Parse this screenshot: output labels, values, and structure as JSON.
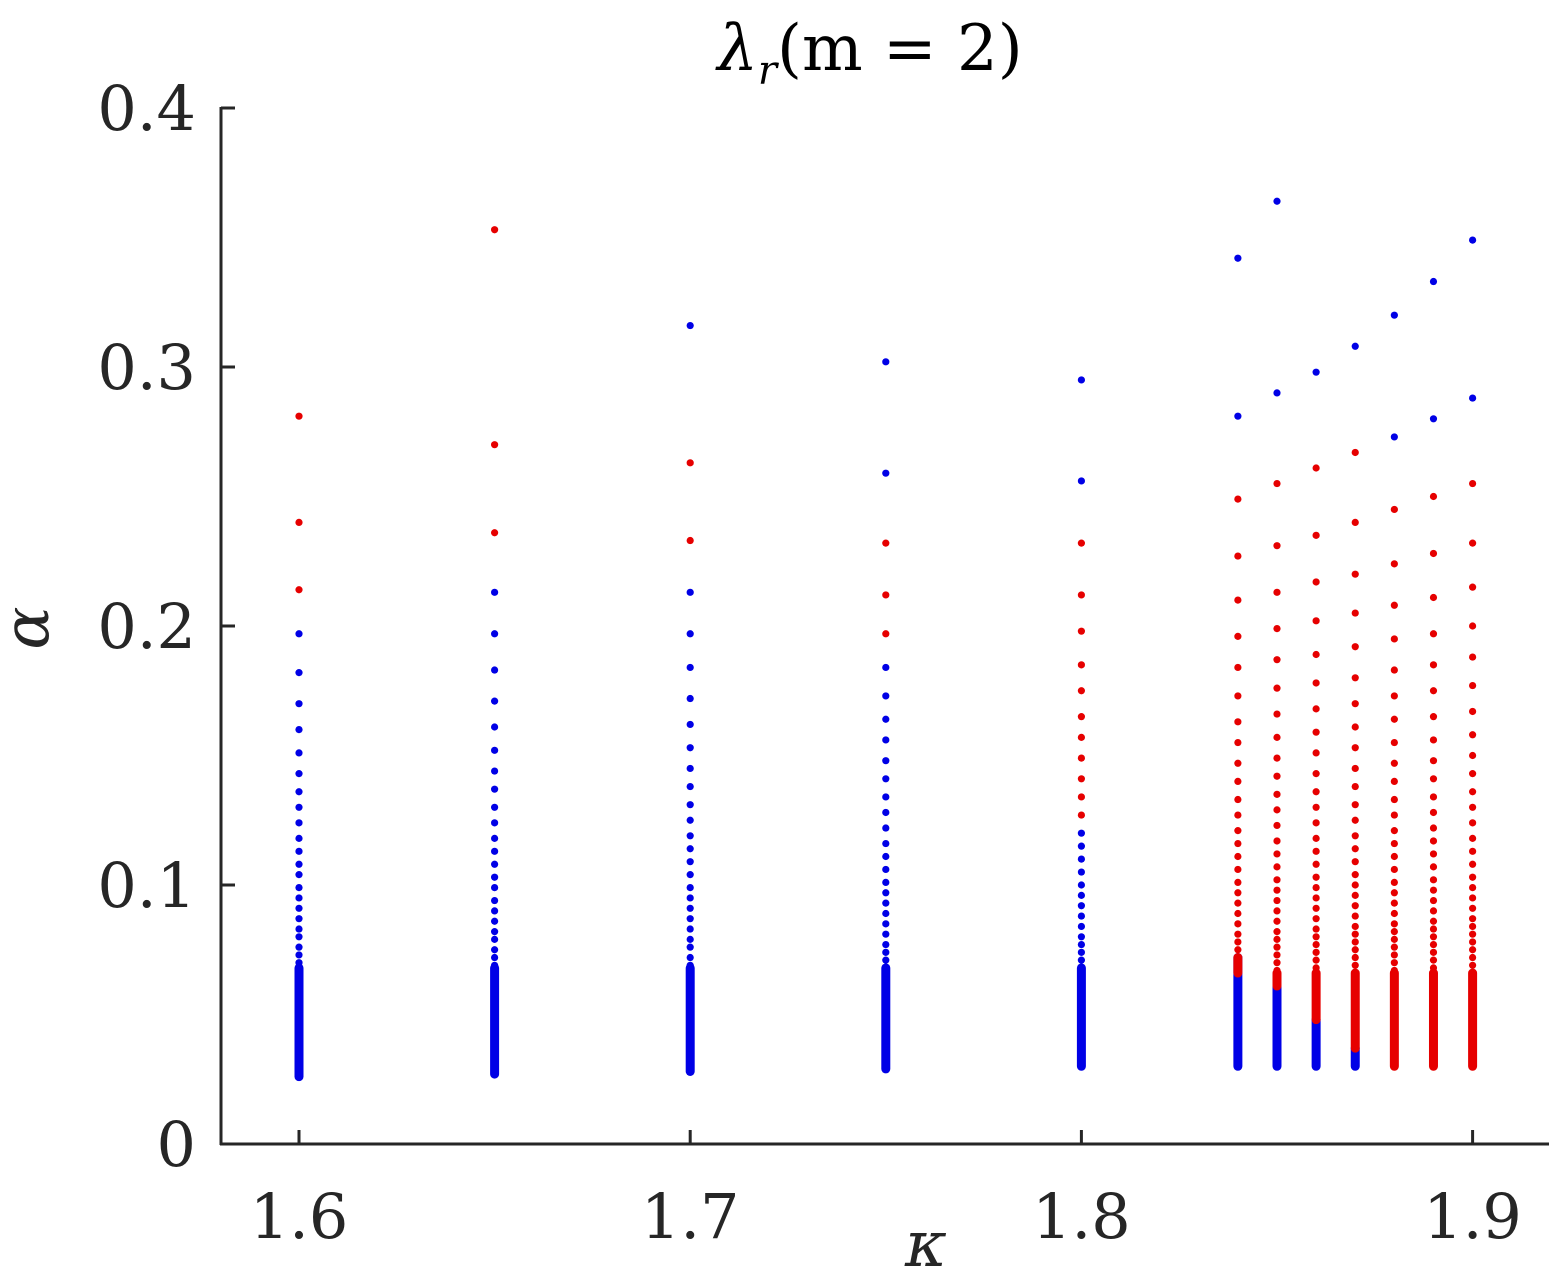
{
  "chart_data": {
    "type": "scatter",
    "title": "λ_r(m = 2)",
    "title_main": "λ",
    "title_sub": "r",
    "title_rest": "(m = 2)",
    "xlabel": "κ",
    "ylabel": "α",
    "xlim": [
      1.58,
      1.92
    ],
    "ylim": [
      0,
      0.4
    ],
    "xticks": [
      1.6,
      1.7,
      1.8,
      1.9
    ],
    "xtick_labels": [
      "1.6",
      "1.7",
      "1.8",
      "1.9"
    ],
    "yticks": [
      0,
      0.1,
      0.2,
      0.3,
      0.4
    ],
    "ytick_labels": [
      "0",
      "0.1",
      "0.2",
      "0.3",
      "0.4"
    ],
    "colors": {
      "blue": "#0000e6",
      "red": "#e60000",
      "axis": "#262626"
    },
    "series": [
      {
        "kappa": 1.6,
        "alpha_min": 0.026,
        "blue_max": 0.197,
        "red_min": 0.213,
        "red_max": 0.281,
        "blue_points": [
          0.197,
          0.182,
          0.17,
          0.16,
          0.151,
          0.143,
          0.136,
          0.13,
          0.124,
          0.118,
          0.113,
          0.108,
          0.104,
          0.099,
          0.095,
          0.091,
          0.087,
          0.083,
          0.08,
          0.076,
          0.073,
          0.07,
          0.067,
          0.064
        ],
        "red_points": [
          0.281,
          0.24,
          0.214
        ]
      },
      {
        "kappa": 1.65,
        "alpha_min": 0.027,
        "blue_max": 0.213,
        "red_min": 0.235,
        "red_max": 0.353,
        "blue_points": [
          0.213,
          0.197,
          0.183,
          0.171,
          0.161,
          0.152,
          0.144,
          0.137,
          0.13,
          0.124,
          0.118,
          0.113,
          0.108,
          0.103,
          0.099,
          0.094,
          0.09,
          0.086,
          0.082,
          0.079,
          0.075,
          0.072,
          0.069,
          0.066
        ],
        "red_points": [
          0.353,
          0.27,
          0.236
        ]
      },
      {
        "kappa": 1.7,
        "alpha_min": 0.028,
        "blue_max": 0.316,
        "red_min": 0.233,
        "red_max": 0.263,
        "blue_points": [
          0.316,
          0.213,
          0.197,
          0.184,
          0.172,
          0.162,
          0.153,
          0.145,
          0.138,
          0.131,
          0.125,
          0.119,
          0.114,
          0.109,
          0.104,
          0.099,
          0.095,
          0.091,
          0.087,
          0.083,
          0.079,
          0.076,
          0.072,
          0.069,
          0.066
        ],
        "red_points": [
          0.263,
          0.233
        ]
      },
      {
        "kappa": 1.75,
        "alpha_min": 0.029,
        "blue_max": 0.302,
        "red_min": 0.197,
        "red_max": 0.232,
        "blue_points": [
          0.302,
          0.259,
          0.184,
          0.173,
          0.164,
          0.156,
          0.148,
          0.141,
          0.134,
          0.128,
          0.122,
          0.116,
          0.111,
          0.106,
          0.101,
          0.097,
          0.093,
          0.089,
          0.085,
          0.081,
          0.077,
          0.074,
          0.071,
          0.068
        ],
        "red_points": [
          0.232,
          0.212,
          0.197
        ]
      },
      {
        "kappa": 1.8,
        "alpha_min": 0.03,
        "blue_max": 0.295,
        "red_min": 0.12,
        "red_max": 0.232,
        "blue_points": [
          0.295,
          0.256,
          0.12,
          0.115,
          0.11,
          0.105,
          0.1,
          0.096,
          0.092,
          0.088,
          0.084,
          0.08,
          0.077,
          0.074,
          0.071,
          0.068
        ],
        "red_points": [
          0.232,
          0.212,
          0.198,
          0.185,
          0.175,
          0.165,
          0.157,
          0.149,
          0.141,
          0.134,
          0.127
        ]
      },
      {
        "kappa": 1.84,
        "alpha_min": 0.03,
        "blue_max": 0.342,
        "red_min": 0.072,
        "red_max": 0.249,
        "blue_points": [
          0.342,
          0.281
        ],
        "red_points": [
          0.249,
          0.227,
          0.21,
          0.196,
          0.184,
          0.173,
          0.163,
          0.155,
          0.147,
          0.14,
          0.133,
          0.127,
          0.121,
          0.116,
          0.111,
          0.106,
          0.101,
          0.097,
          0.093,
          0.089,
          0.085,
          0.081,
          0.078,
          0.075
        ]
      },
      {
        "kappa": 1.85,
        "alpha_min": 0.03,
        "blue_max": 0.364,
        "red_min": 0.061,
        "red_max": 0.255,
        "blue_points": [
          0.364,
          0.29
        ],
        "red_points": [
          0.255,
          0.231,
          0.213,
          0.199,
          0.187,
          0.176,
          0.166,
          0.157,
          0.149,
          0.142,
          0.135,
          0.129,
          0.123,
          0.117,
          0.112,
          0.107,
          0.102,
          0.098,
          0.094,
          0.09,
          0.086,
          0.082,
          0.079,
          0.076,
          0.073,
          0.07,
          0.067,
          0.064
        ]
      },
      {
        "kappa": 1.86,
        "alpha_min": 0.03,
        "blue_max": 0.298,
        "red_min": 0.048,
        "red_max": 0.261,
        "blue_points": [
          0.298
        ],
        "red_points": [
          0.261,
          0.235,
          0.217,
          0.202,
          0.189,
          0.178,
          0.168,
          0.159,
          0.151,
          0.143,
          0.136,
          0.13,
          0.124,
          0.118,
          0.113,
          0.108,
          0.103,
          0.099,
          0.095,
          0.091,
          0.087,
          0.083,
          0.08,
          0.077,
          0.074,
          0.071,
          0.068,
          0.065,
          0.062
        ]
      },
      {
        "kappa": 1.87,
        "alpha_min": 0.03,
        "blue_max": 0.308,
        "red_min": 0.037,
        "red_max": 0.267,
        "blue_points": [
          0.308
        ],
        "red_points": [
          0.267,
          0.24,
          0.22,
          0.205,
          0.192,
          0.18,
          0.17,
          0.161,
          0.153,
          0.145,
          0.138,
          0.131,
          0.125,
          0.119,
          0.114,
          0.109,
          0.104,
          0.1,
          0.096,
          0.092,
          0.088,
          0.084,
          0.081,
          0.078,
          0.075,
          0.072,
          0.069,
          0.066,
          0.063
        ]
      },
      {
        "kappa": 1.88,
        "alpha_min": 0.03,
        "blue_max": 0.32,
        "red_min": 0.03,
        "red_max": 0.245,
        "blue_points": [
          0.32,
          0.273
        ],
        "red_points": [
          0.245,
          0.224,
          0.208,
          0.195,
          0.183,
          0.173,
          0.164,
          0.155,
          0.147,
          0.14,
          0.133,
          0.127,
          0.121,
          0.116,
          0.111,
          0.106,
          0.101,
          0.097,
          0.093,
          0.089,
          0.085,
          0.082,
          0.079,
          0.076,
          0.073,
          0.07,
          0.067,
          0.064
        ]
      },
      {
        "kappa": 1.89,
        "alpha_min": 0.03,
        "blue_max": 0.333,
        "red_min": 0.03,
        "red_max": 0.25,
        "blue_points": [
          0.333,
          0.28
        ],
        "red_points": [
          0.25,
          0.228,
          0.211,
          0.197,
          0.185,
          0.175,
          0.165,
          0.156,
          0.148,
          0.141,
          0.134,
          0.128,
          0.122,
          0.117,
          0.112,
          0.107,
          0.102,
          0.098,
          0.094,
          0.09,
          0.086,
          0.083,
          0.08,
          0.077,
          0.074,
          0.071,
          0.068,
          0.065
        ]
      },
      {
        "kappa": 1.9,
        "alpha_min": 0.03,
        "blue_max": 0.349,
        "red_min": 0.03,
        "red_max": 0.255,
        "blue_points": [
          0.349,
          0.288
        ],
        "red_points": [
          0.255,
          0.232,
          0.215,
          0.2,
          0.188,
          0.177,
          0.167,
          0.158,
          0.15,
          0.143,
          0.136,
          0.13,
          0.124,
          0.118,
          0.113,
          0.108,
          0.103,
          0.099,
          0.095,
          0.091,
          0.087,
          0.084,
          0.081,
          0.078,
          0.075,
          0.072,
          0.069,
          0.066
        ]
      }
    ]
  }
}
